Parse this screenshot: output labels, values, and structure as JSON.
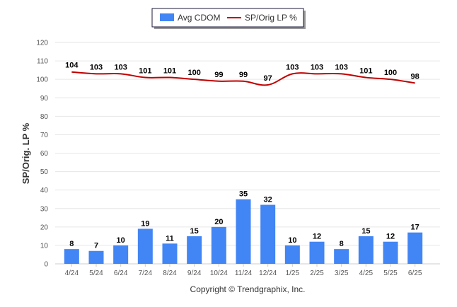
{
  "chart_data": {
    "type": "bar",
    "categories": [
      "4/24",
      "5/24",
      "6/24",
      "7/24",
      "8/24",
      "9/24",
      "10/24",
      "11/24",
      "12/24",
      "1/25",
      "2/25",
      "3/25",
      "4/25",
      "5/25",
      "6/25"
    ],
    "series": [
      {
        "name": "Avg CDOM",
        "type": "bar",
        "color": "#4285f4",
        "values": [
          8,
          7,
          10,
          19,
          11,
          15,
          20,
          35,
          32,
          10,
          12,
          8,
          15,
          12,
          17
        ]
      },
      {
        "name": "SP/Orig LP %",
        "type": "line",
        "color": "#c00000",
        "values": [
          104,
          103,
          103,
          101,
          101,
          100,
          99,
          99,
          97,
          103,
          103,
          103,
          101,
          100,
          98
        ]
      }
    ],
    "ylabel": "SP/Orig. LP %",
    "ylim": [
      0,
      120
    ],
    "yticks": [
      0,
      10,
      20,
      30,
      40,
      50,
      60,
      70,
      80,
      90,
      100,
      110,
      120
    ],
    "grid": true,
    "legend_position": "top-center"
  },
  "legend": {
    "bar_label": "Avg CDOM",
    "line_label": "SP/Orig LP %"
  },
  "footer": {
    "copyright": "Copyright © Trendgraphix, Inc."
  }
}
